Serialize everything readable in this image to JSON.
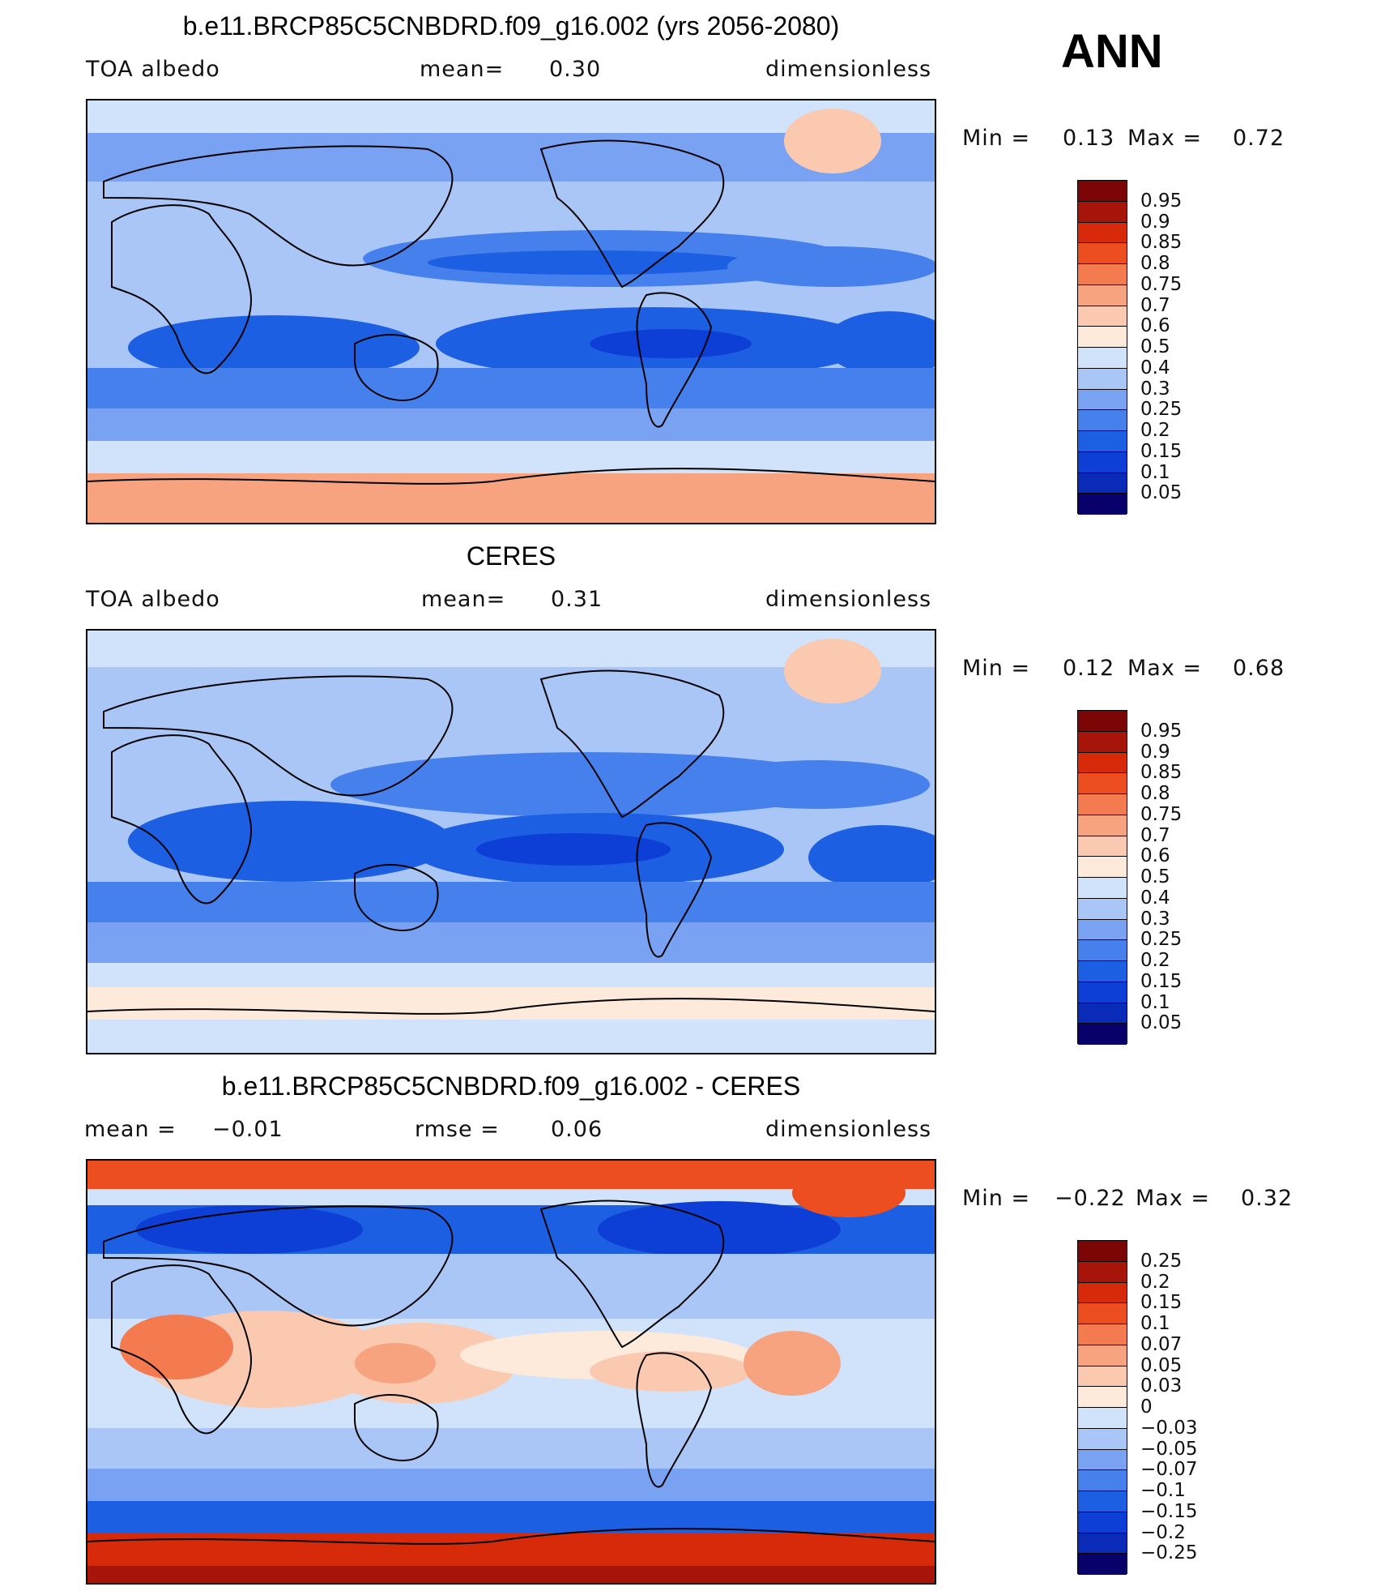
{
  "annual_label": "ANN",
  "colors": {
    "abs": [
      "#08016b",
      "#0a2bb8",
      "#0d3fd6",
      "#1c5fe3",
      "#4680ec",
      "#7aa2f3",
      "#a9c6f7",
      "#d0e3fb",
      "#fdeadb",
      "#fbc9b0",
      "#f8a37f",
      "#f47a4f",
      "#ec4e1f",
      "#d62a0b",
      "#a7150a",
      "#7c0606"
    ],
    "diff": [
      "#08016b",
      "#0a2bb8",
      "#0d3fd6",
      "#1c5fe3",
      "#4680ec",
      "#7aa2f3",
      "#a9c6f7",
      "#d0e3fb",
      "#fdeadb",
      "#fbc9b0",
      "#f8a37f",
      "#f47a4f",
      "#ec4e1f",
      "#d62a0b",
      "#a7150a",
      "#7c0606"
    ]
  },
  "panels": [
    {
      "title": "b.e11.BRCP85C5CNBDRD.f09_g16.002 (yrs 2056-2080)",
      "left_label": "TOA albedo",
      "center_label": "mean=",
      "center_value": "0.30",
      "right_label": "dimensionless",
      "min_label": "Min =",
      "min_value": "0.13",
      "max_label": "Max =",
      "max_value": "0.72",
      "colorbar": {
        "palette": "abs",
        "labels": [
          "0.95",
          "0.9",
          "0.85",
          "0.8",
          "0.75",
          "0.7",
          "0.6",
          "0.5",
          "0.4",
          "0.3",
          "0.25",
          "0.2",
          "0.15",
          "0.1",
          "0.05"
        ]
      }
    },
    {
      "title": "CERES",
      "left_label": "TOA albedo",
      "center_label": "mean=",
      "center_value": "0.31",
      "right_label": "dimensionless",
      "min_label": "Min =",
      "min_value": "0.12",
      "max_label": "Max =",
      "max_value": "0.68",
      "colorbar": {
        "palette": "abs",
        "labels": [
          "0.95",
          "0.9",
          "0.85",
          "0.8",
          "0.75",
          "0.7",
          "0.6",
          "0.5",
          "0.4",
          "0.3",
          "0.25",
          "0.2",
          "0.15",
          "0.1",
          "0.05"
        ]
      }
    },
    {
      "title": "b.e11.BRCP85C5CNBDRD.f09_g16.002 - CERES",
      "left_label": "mean =",
      "left_value": "−0.01",
      "center_label": "rmse =",
      "center_value": "0.06",
      "right_label": "dimensionless",
      "min_label": "Min =",
      "min_value": "−0.22",
      "max_label": "Max =",
      "max_value": "0.32",
      "colorbar": {
        "palette": "diff",
        "labels": [
          "0.25",
          "0.2",
          "0.15",
          "0.1",
          "0.07",
          "0.05",
          "0.03",
          "0",
          "−0.03",
          "−0.05",
          "−0.07",
          "−0.1",
          "−0.15",
          "−0.2",
          "−0.25"
        ]
      }
    }
  ]
}
